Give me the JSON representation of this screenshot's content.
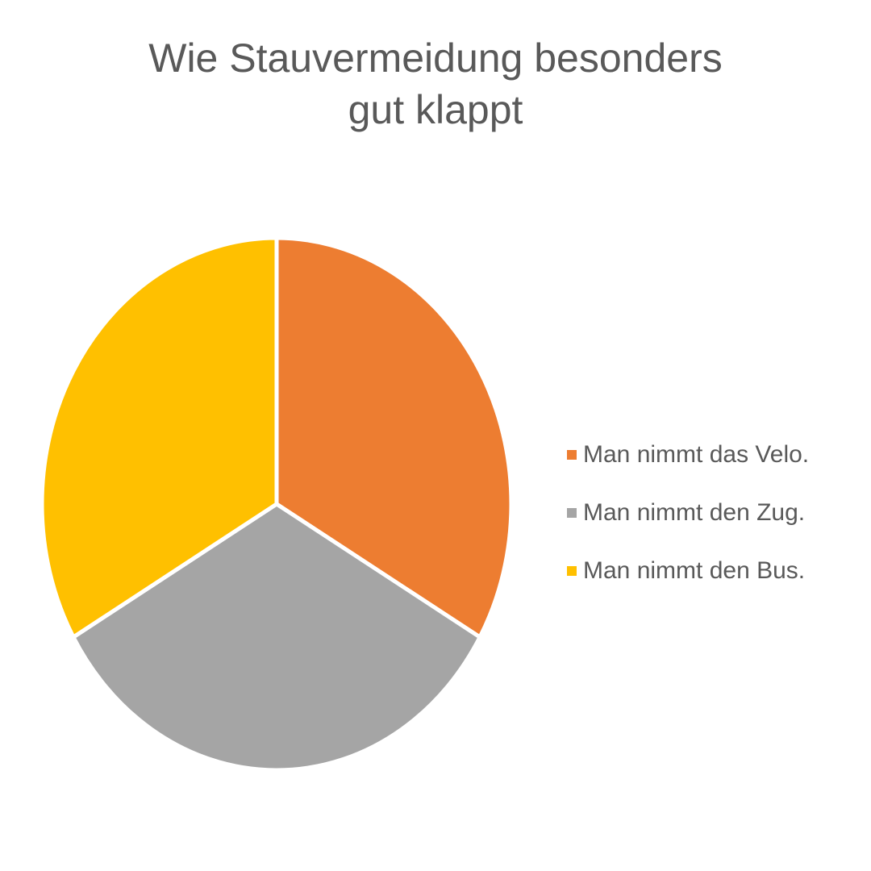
{
  "chart_data": {
    "type": "pie",
    "title": "Wie Stauvermeidung besonders\ngut klappt",
    "labels": [
      "Man nimmt das Velo.",
      "Man nimmt den Zug.",
      "Man nimmt den Bus."
    ],
    "values": [
      1,
      1,
      1
    ],
    "colors": [
      "#ED7D31",
      "#A5A5A5",
      "#FFC000"
    ],
    "start_angle_deg": 0,
    "direction": "clockwise",
    "legend_position": "right"
  }
}
